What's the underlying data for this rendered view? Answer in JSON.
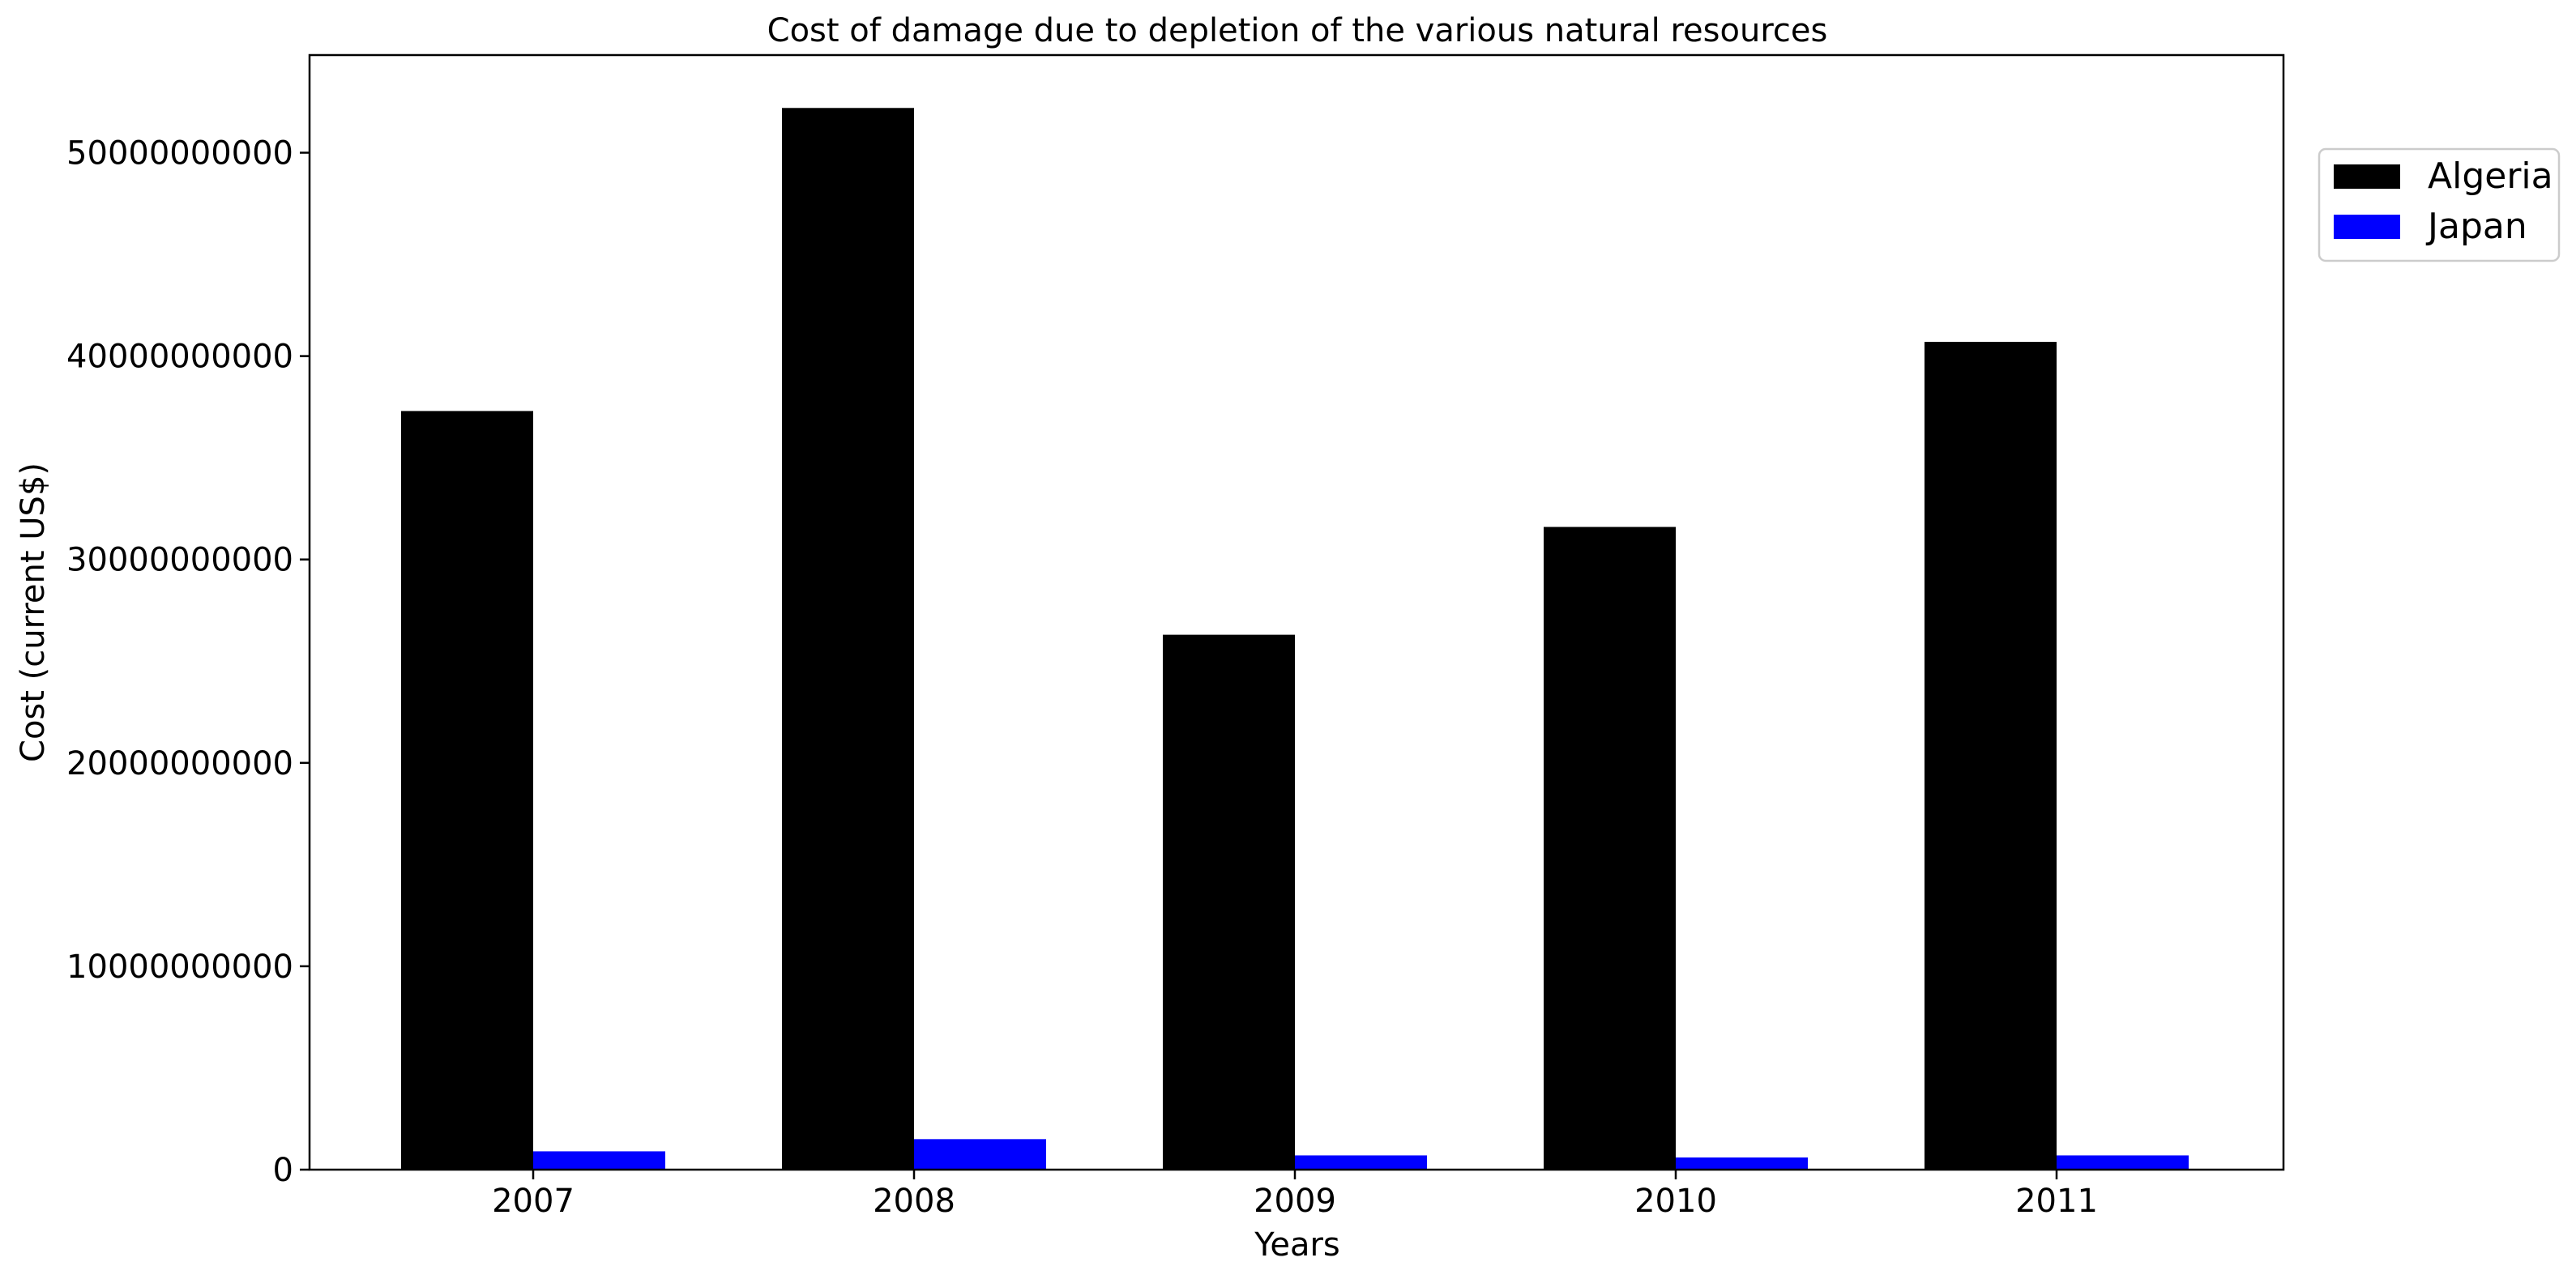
{
  "chart_data": {
    "type": "bar",
    "title": "Cost of damage due to depletion of the various natural resources",
    "xlabel": "Years",
    "ylabel": "Cost (current US$)",
    "categories": [
      "2007",
      "2008",
      "2009",
      "2010",
      "2011"
    ],
    "series": [
      {
        "name": "Algeria",
        "color": "#000000",
        "values": [
          37300000000,
          52200000000,
          26300000000,
          31600000000,
          40700000000
        ]
      },
      {
        "name": "Japan",
        "color": "#0000ff",
        "values": [
          900000000,
          1500000000,
          700000000,
          600000000,
          700000000
        ]
      }
    ],
    "ylim": [
      0,
      54800000000
    ],
    "yticks": [
      0,
      10000000000,
      20000000000,
      30000000000,
      40000000000,
      50000000000
    ],
    "ytick_labels": [
      "0",
      "10000000000",
      "20000000000",
      "30000000000",
      "40000000000",
      "50000000000"
    ],
    "grid": false,
    "legend_position": "outside-top-right"
  }
}
